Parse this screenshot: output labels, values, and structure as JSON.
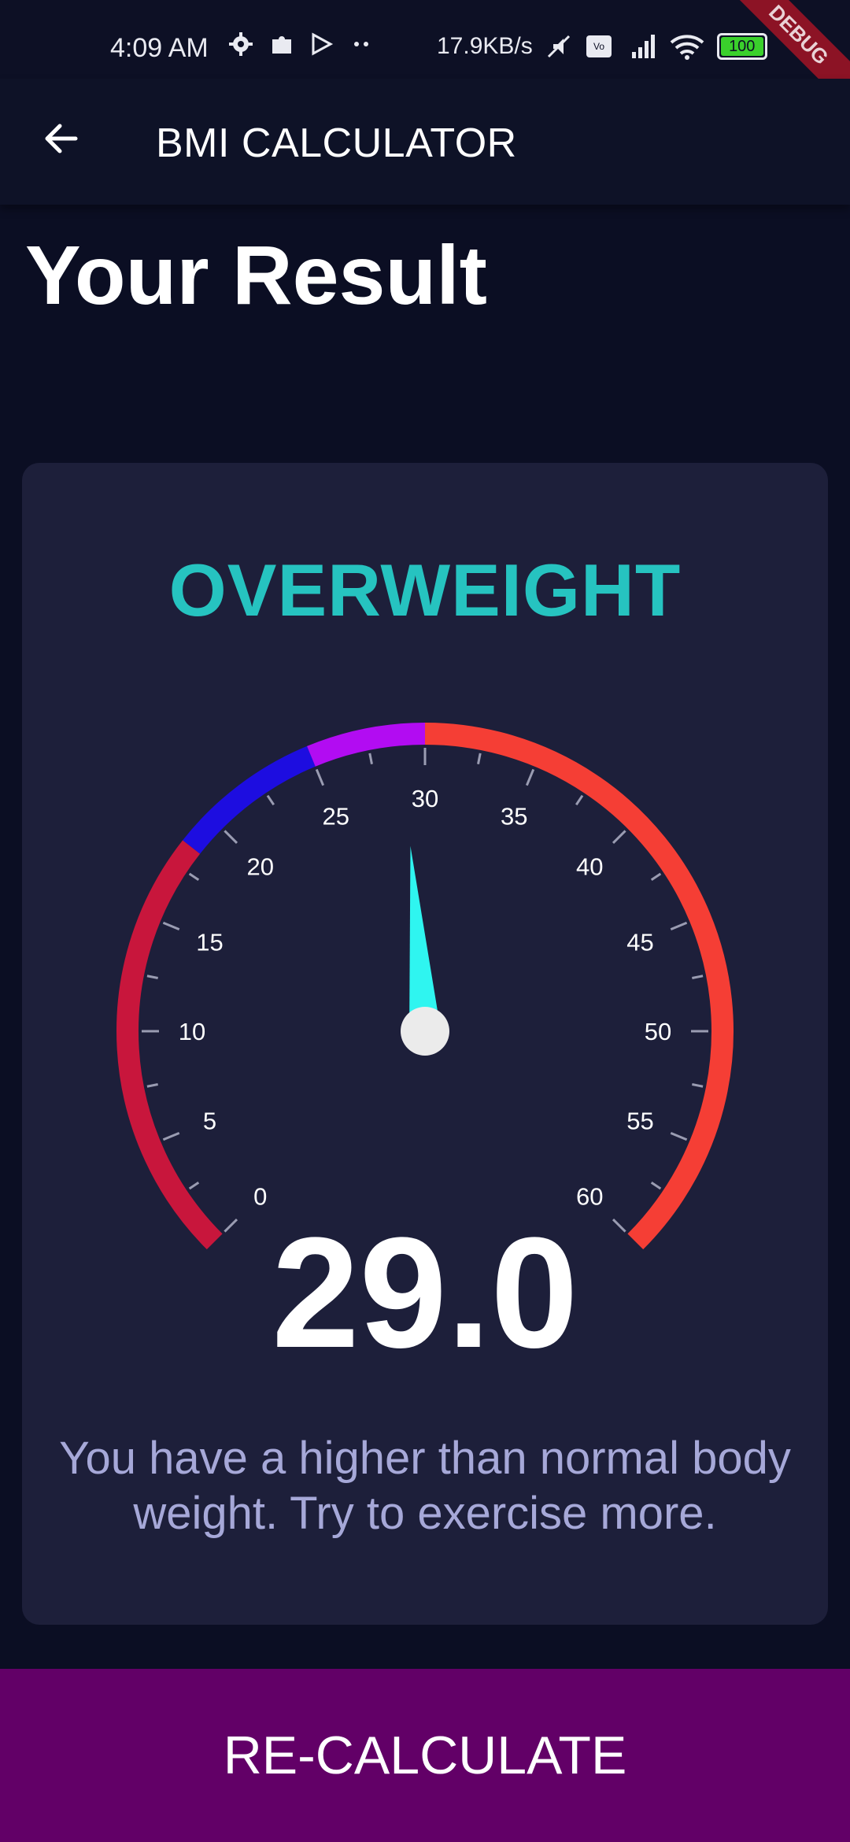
{
  "status_bar": {
    "time": "4:09 AM",
    "net_speed": "17.9KB/s",
    "battery": "100",
    "debug_ribbon": "DEBUG"
  },
  "app_bar": {
    "back_icon": "arrow-left-icon",
    "title": "BMI CALCULATOR"
  },
  "page": {
    "title": "Your Result"
  },
  "result": {
    "category": "OVERWEIGHT",
    "category_color": "#26c3c0",
    "bmi": "29.0",
    "bmi_value": 29.0,
    "interpretation": "You have a higher than normal body weight. Try to exercise more."
  },
  "gauge": {
    "min": 0,
    "max": 60,
    "tick_labels": [
      "0",
      "5",
      "10",
      "15",
      "20",
      "25",
      "30",
      "35",
      "40",
      "45",
      "50",
      "55",
      "60"
    ],
    "ranges": [
      {
        "from": 0,
        "to": 18.5,
        "color": "#c8163c"
      },
      {
        "from": 18.5,
        "to": 25,
        "color": "#1d0de0"
      },
      {
        "from": 25,
        "to": 30,
        "color": "#b20cf2"
      },
      {
        "from": 30,
        "to": 60,
        "color": "#f53e35"
      }
    ],
    "needle_color": "#2ff5f0",
    "knob_color": "#ebebeb"
  },
  "actions": {
    "recalculate_label": "RE-CALCULATE",
    "button_color": "#620067"
  }
}
